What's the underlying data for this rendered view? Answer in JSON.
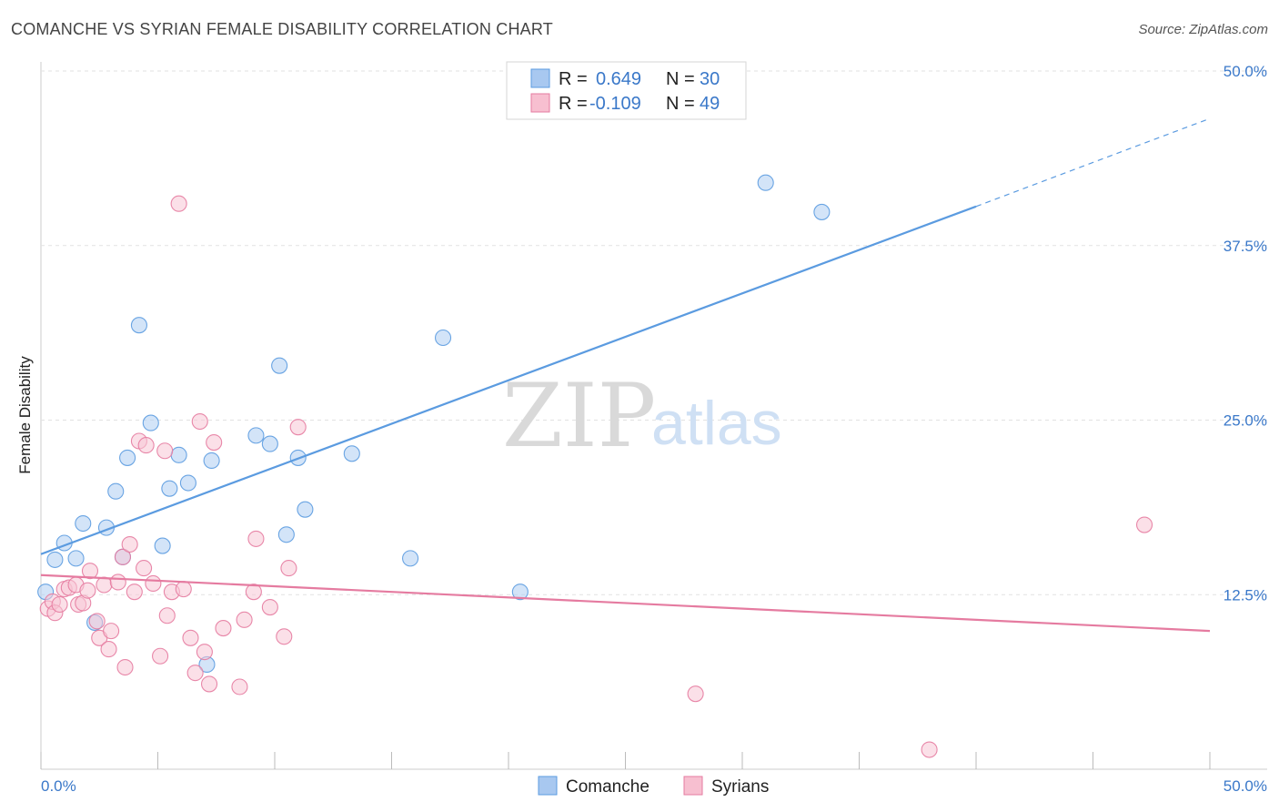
{
  "title": "COMANCHE VS SYRIAN FEMALE DISABILITY CORRELATION CHART",
  "source": "Source: ZipAtlas.com",
  "watermark": {
    "left": "ZIP",
    "right": "atlas"
  },
  "legend": {
    "r_label": "R =",
    "n_label": "N =",
    "entries": [
      {
        "r": "0.649",
        "n": "30",
        "color": "#a8c8f0"
      },
      {
        "r": "-0.109",
        "n": "49",
        "color": "#f7bfd0"
      }
    ]
  },
  "bottom_legend": [
    "Comanche",
    "Syrians"
  ],
  "chart_data": {
    "type": "scatter",
    "ylabel": "Female Disability",
    "xlim": [
      0,
      50
    ],
    "ylim": [
      0,
      50
    ],
    "x_tick_labels": [
      "0.0%",
      "50.0%"
    ],
    "y_ticks": [
      12.5,
      25.0,
      37.5,
      50.0
    ],
    "y_tick_labels": [
      "12.5%",
      "25.0%",
      "37.5%",
      "50.0%"
    ],
    "grid": true,
    "series": [
      {
        "name": "Comanche",
        "color": "#5b9be0",
        "fill": "#aecdf2",
        "trend": {
          "x0": 0,
          "y0": 15.4,
          "x1": 40,
          "y1": 40.3,
          "dash_x1": 50,
          "dash_y1": 46.6
        },
        "points": [
          [
            0.2,
            12.7
          ],
          [
            0.6,
            15.0
          ],
          [
            1.0,
            16.2
          ],
          [
            1.5,
            15.1
          ],
          [
            1.8,
            17.6
          ],
          [
            2.3,
            10.5
          ],
          [
            2.8,
            17.3
          ],
          [
            3.2,
            19.9
          ],
          [
            3.5,
            15.2
          ],
          [
            3.7,
            22.3
          ],
          [
            4.2,
            31.8
          ],
          [
            4.7,
            24.8
          ],
          [
            5.2,
            16.0
          ],
          [
            5.5,
            20.1
          ],
          [
            5.9,
            22.5
          ],
          [
            6.3,
            20.5
          ],
          [
            7.1,
            7.5
          ],
          [
            7.3,
            22.1
          ],
          [
            9.2,
            23.9
          ],
          [
            9.8,
            23.3
          ],
          [
            10.2,
            28.9
          ],
          [
            10.5,
            16.8
          ],
          [
            11.0,
            22.3
          ],
          [
            11.3,
            18.6
          ],
          [
            13.3,
            22.6
          ],
          [
            17.2,
            30.9
          ],
          [
            15.8,
            15.1
          ],
          [
            20.5,
            12.7
          ],
          [
            31.0,
            42.0
          ],
          [
            33.4,
            39.9
          ]
        ]
      },
      {
        "name": "Syrians",
        "color": "#e57ba0",
        "fill": "#f8c6d5",
        "trend": {
          "x0": 0,
          "y0": 13.9,
          "x1": 50,
          "y1": 9.9
        },
        "points": [
          [
            0.3,
            11.5
          ],
          [
            0.5,
            12.0
          ],
          [
            0.6,
            11.2
          ],
          [
            0.8,
            11.8
          ],
          [
            1.0,
            12.9
          ],
          [
            1.2,
            13.0
          ],
          [
            1.5,
            13.2
          ],
          [
            1.6,
            11.8
          ],
          [
            1.8,
            11.9
          ],
          [
            2.0,
            12.8
          ],
          [
            2.1,
            14.2
          ],
          [
            2.4,
            10.6
          ],
          [
            2.5,
            9.4
          ],
          [
            2.7,
            13.2
          ],
          [
            2.9,
            8.6
          ],
          [
            3.0,
            9.9
          ],
          [
            3.3,
            13.4
          ],
          [
            3.5,
            15.2
          ],
          [
            3.6,
            7.3
          ],
          [
            3.8,
            16.1
          ],
          [
            4.0,
            12.7
          ],
          [
            4.2,
            23.5
          ],
          [
            4.4,
            14.4
          ],
          [
            4.5,
            23.2
          ],
          [
            4.8,
            13.3
          ],
          [
            5.1,
            8.1
          ],
          [
            5.3,
            22.8
          ],
          [
            5.4,
            11.0
          ],
          [
            5.6,
            12.7
          ],
          [
            5.9,
            40.5
          ],
          [
            6.1,
            12.9
          ],
          [
            6.4,
            9.4
          ],
          [
            6.6,
            6.9
          ],
          [
            6.8,
            24.9
          ],
          [
            7.0,
            8.4
          ],
          [
            7.2,
            6.1
          ],
          [
            7.4,
            23.4
          ],
          [
            7.8,
            10.1
          ],
          [
            8.5,
            5.9
          ],
          [
            8.7,
            10.7
          ],
          [
            9.1,
            12.7
          ],
          [
            9.2,
            16.5
          ],
          [
            9.8,
            11.6
          ],
          [
            10.4,
            9.5
          ],
          [
            10.6,
            14.4
          ],
          [
            11.0,
            24.5
          ],
          [
            28.0,
            5.4
          ],
          [
            38.0,
            1.4
          ],
          [
            47.2,
            17.5
          ]
        ]
      }
    ]
  }
}
